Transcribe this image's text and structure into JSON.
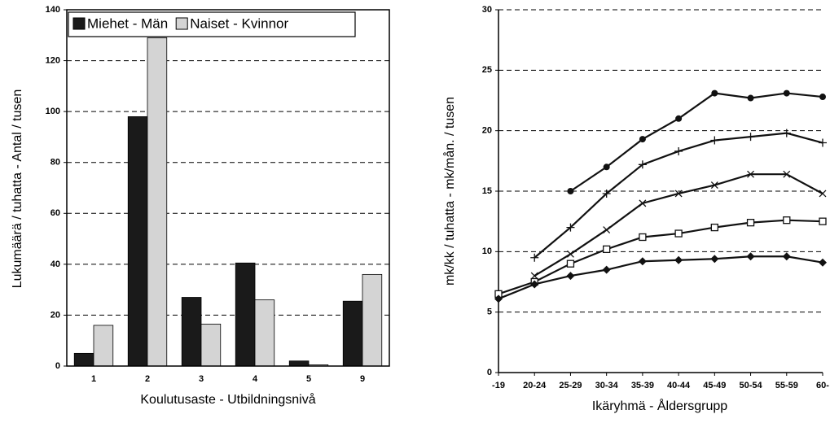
{
  "chart_data": [
    {
      "type": "bar",
      "x_label": "Koulutusaste - Utbildningsnivå",
      "y_label": "Lukumäärä / tuhatta - Antal / tusen",
      "categories": [
        "1",
        "2",
        "3",
        "4",
        "5",
        "9"
      ],
      "series": [
        {
          "name": "Miehet - Män",
          "color": "#1a1a1a",
          "values": [
            5,
            98,
            27,
            40.5,
            2,
            25.5
          ]
        },
        {
          "name": "Naiset - Kvinnor",
          "color": "#d4d4d4",
          "values": [
            16,
            129,
            16.5,
            26,
            0.5,
            36
          ]
        }
      ],
      "ylim": [
        0,
        140
      ],
      "yticks": [
        0,
        20,
        40,
        60,
        80,
        100,
        120,
        140
      ],
      "grid": true,
      "legend": "top"
    },
    {
      "type": "line",
      "x_label": "Ikäryhmä - Åldersgrupp",
      "y_label": "mk/kk / tuhatta - mk/mån. / tusen",
      "categories": [
        "-19",
        "20-24",
        "25-29",
        "30-34",
        "35-39",
        "40-44",
        "45-49",
        "50-54",
        "55-59",
        "60-"
      ],
      "series": [
        {
          "color": "#111111",
          "marker": "circle",
          "values": [
            null,
            null,
            15,
            17,
            19.3,
            21,
            23.1,
            22.7,
            23.1,
            22.8
          ]
        },
        {
          "color": "#111111",
          "marker": "plus",
          "values": [
            null,
            9.5,
            12,
            14.8,
            17.2,
            18.3,
            19.2,
            19.5,
            19.8,
            19
          ]
        },
        {
          "color": "#111111",
          "marker": "cross",
          "values": [
            null,
            8,
            9.8,
            11.8,
            14,
            14.8,
            15.5,
            16.4,
            16.4,
            14.8
          ]
        },
        {
          "color": "#111111",
          "marker": "square",
          "values": [
            6.5,
            7.5,
            9,
            10.2,
            11.2,
            11.5,
            12,
            12.4,
            12.6,
            12.5
          ]
        },
        {
          "color": "#111111",
          "marker": "diamond",
          "values": [
            6.1,
            7.3,
            8,
            8.5,
            9.2,
            9.3,
            9.4,
            9.6,
            9.6,
            9.1
          ]
        }
      ],
      "ylim": [
        0,
        30
      ],
      "yticks": [
        0,
        5,
        10,
        15,
        20,
        25,
        30
      ],
      "grid": true
    }
  ]
}
